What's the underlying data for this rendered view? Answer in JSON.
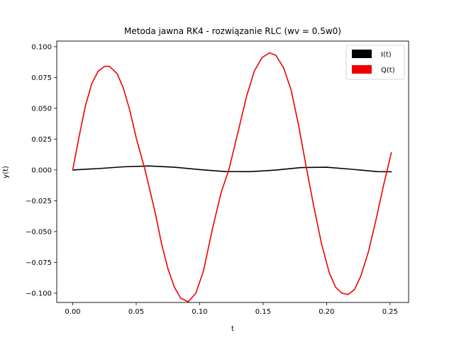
{
  "chart_data": {
    "type": "line",
    "title": "Metoda jawna RK4 - rozwiązanie RLC (wv = 0.5w0)",
    "xlabel": "t",
    "ylabel": "y(t)",
    "xlim": [
      -0.0126,
      0.2646
    ],
    "ylim": [
      -0.1075,
      0.1045
    ],
    "xticks": [
      0.0,
      0.05,
      0.1,
      0.15,
      0.2,
      0.25
    ],
    "xtick_labels": [
      "0.00",
      "0.05",
      "0.10",
      "0.15",
      "0.20",
      "0.25"
    ],
    "yticks": [
      0.1,
      0.075,
      0.05,
      0.025,
      0.0,
      -0.025,
      -0.05,
      -0.075,
      -0.1
    ],
    "ytick_labels": [
      "0.100",
      "0.075",
      "0.050",
      "0.025",
      "0.000",
      "−0.025",
      "−0.050",
      "−0.075",
      "−0.100"
    ],
    "grid": false,
    "legend_position": "top-right",
    "series": [
      {
        "name": "I(t)",
        "color": "#000000",
        "x": [
          0.0,
          0.02,
          0.04,
          0.06,
          0.08,
          0.1,
          0.12,
          0.14,
          0.16,
          0.18,
          0.2,
          0.22,
          0.24,
          0.251
        ],
        "y": [
          0.0,
          0.0011,
          0.0025,
          0.0032,
          0.0022,
          0.0003,
          -0.0013,
          -0.0014,
          -0.0001,
          0.0019,
          0.0022,
          0.0005,
          -0.0014,
          -0.0015
        ]
      },
      {
        "name": "Q(t)",
        "color": "#ee0000",
        "x": [
          0.0,
          0.005,
          0.01,
          0.015,
          0.02,
          0.025,
          0.029,
          0.035,
          0.04,
          0.045,
          0.05,
          0.057,
          0.065,
          0.07,
          0.075,
          0.08,
          0.085,
          0.091,
          0.097,
          0.103,
          0.11,
          0.117,
          0.123,
          0.13,
          0.137,
          0.143,
          0.149,
          0.155,
          0.16,
          0.166,
          0.172,
          0.178,
          0.184,
          0.19,
          0.196,
          0.202,
          0.207,
          0.212,
          0.217,
          0.222,
          0.227,
          0.233,
          0.239,
          0.245,
          0.251
        ],
        "y": [
          0.0,
          0.027,
          0.052,
          0.07,
          0.08,
          0.084,
          0.084,
          0.078,
          0.066,
          0.048,
          0.026,
          0.0,
          -0.035,
          -0.06,
          -0.08,
          -0.095,
          -0.104,
          -0.107,
          -0.1,
          -0.082,
          -0.048,
          -0.018,
          0.0,
          0.03,
          0.06,
          0.08,
          0.091,
          0.095,
          0.093,
          0.083,
          0.065,
          0.036,
          0.002,
          -0.03,
          -0.06,
          -0.083,
          -0.095,
          -0.1,
          -0.101,
          -0.097,
          -0.086,
          -0.066,
          -0.04,
          -0.012,
          0.014
        ]
      }
    ]
  }
}
